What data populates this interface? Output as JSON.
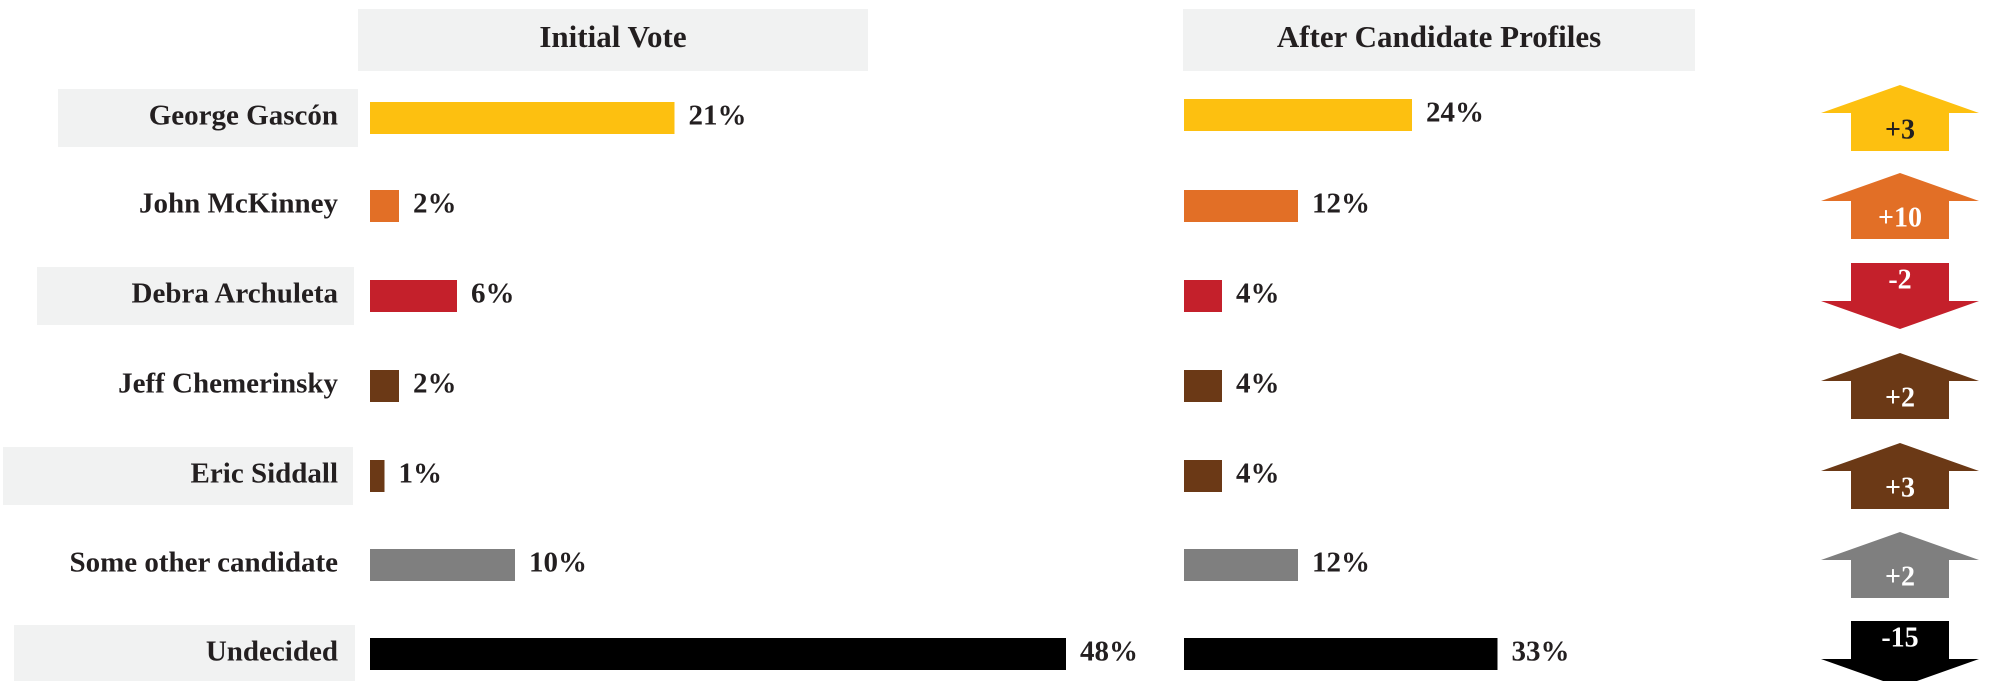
{
  "chart_data": {
    "type": "bar",
    "categories": [
      "George Gascón",
      "John McKinney",
      "Debra Archuleta",
      "Jeff Chemerinsky",
      "Eric Siddall",
      "Some other candidate",
      "Undecided"
    ],
    "series": [
      {
        "name": "Initial Vote",
        "values": [
          21,
          2,
          6,
          2,
          1,
          10,
          48
        ],
        "labels": [
          "21%",
          "2%",
          "6%",
          "2%",
          "1%",
          "10%",
          "48%"
        ]
      },
      {
        "name": "After Candidate Profiles",
        "values": [
          24,
          12,
          4,
          4,
          4,
          12,
          33
        ],
        "labels": [
          "24%",
          "12%",
          "4%",
          "4%",
          "4%",
          "12%",
          "33%"
        ]
      }
    ],
    "changes": [
      3,
      10,
      -2,
      2,
      3,
      2,
      -15
    ],
    "change_labels": [
      "+3",
      "+10",
      "-2",
      "+2",
      "+3",
      "+2",
      "-15"
    ],
    "colors": [
      "#FDC010",
      "#E26F26",
      "#C4202B",
      "#6B3916",
      "#6B3916",
      "#7F7F7F",
      "#000000"
    ],
    "unit": "%",
    "grid": false,
    "legend": "none"
  },
  "colors": {
    "header_bg": "#F1F2F2",
    "label_bg": "#F1F2F2",
    "text": "#231F20",
    "arrow_text": "#FFFFFF"
  }
}
